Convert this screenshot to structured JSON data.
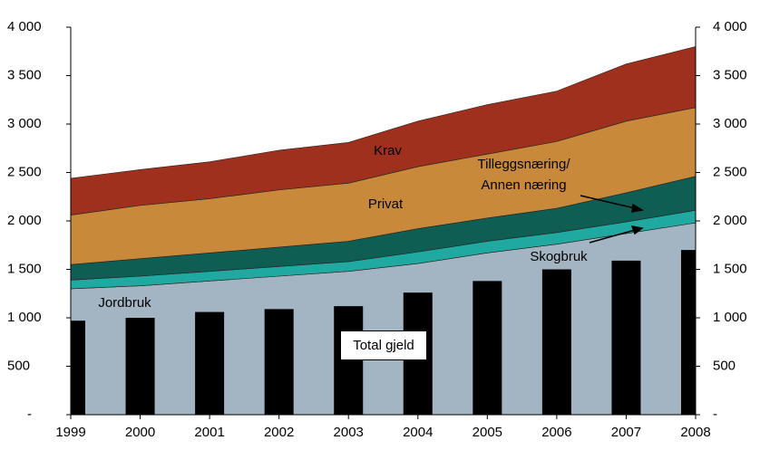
{
  "chart_data": {
    "type": "stacked_area_bar",
    "categories": [
      "1999",
      "2000",
      "2001",
      "2002",
      "2003",
      "2004",
      "2005",
      "2006",
      "2007",
      "2008"
    ],
    "series": [
      {
        "name": "Jordbruk",
        "color": "#a3b5c3",
        "values": [
          1300,
          1330,
          1380,
          1430,
          1480,
          1560,
          1670,
          1760,
          1870,
          1980
        ]
      },
      {
        "name": "Skogbruk",
        "color": "#1fa9a0",
        "values": [
          90,
          100,
          100,
          100,
          100,
          120,
          120,
          120,
          120,
          130
        ]
      },
      {
        "name": "Tilleggsnæring/ Annen næring",
        "color": "#0e5e54",
        "values": [
          160,
          180,
          190,
          200,
          210,
          240,
          240,
          250,
          300,
          350
        ]
      },
      {
        "name": "Privat",
        "color": "#c8893a",
        "values": [
          510,
          550,
          560,
          590,
          600,
          640,
          660,
          690,
          740,
          710
        ]
      },
      {
        "name": "Krav",
        "color": "#a0301e",
        "values": [
          380,
          370,
          380,
          410,
          420,
          470,
          510,
          520,
          590,
          630
        ]
      }
    ],
    "bars": {
      "name": "Total gjeld",
      "color": "#000000",
      "values": [
        970,
        1000,
        1060,
        1090,
        1120,
        1260,
        1380,
        1500,
        1590,
        1700
      ]
    },
    "ylim": [
      0,
      4000
    ],
    "yticks": [
      {
        "value": 0,
        "label": "-"
      },
      500,
      {
        "value": 1000,
        "label": "1 000"
      },
      {
        "value": 1500,
        "label": "1 500"
      },
      {
        "value": 2000,
        "label": "2 000"
      },
      {
        "value": 2500,
        "label": "2 500"
      },
      {
        "value": 3000,
        "label": "3 000"
      },
      {
        "value": 3500,
        "label": "3 500"
      },
      {
        "value": 4000,
        "label": "4 000"
      }
    ]
  }
}
